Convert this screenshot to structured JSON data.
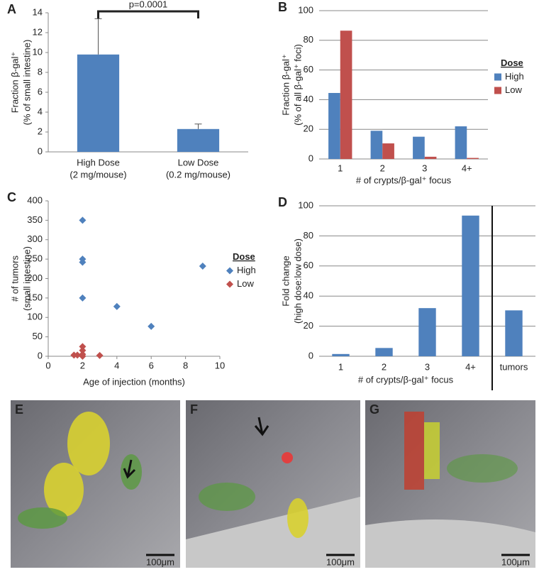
{
  "chart_data": [
    {
      "type": "bar",
      "panel": "A",
      "ylabel": [
        "Fraction β-gal⁺",
        "(% of small intestine)"
      ],
      "categories": [
        "High Dose",
        "Low Dose"
      ],
      "category_sublabels": [
        "(2 mg/mouse)",
        "(0.2 mg/mouse)"
      ],
      "values": [
        9.8,
        2.3
      ],
      "errors": [
        3.6,
        0.5
      ],
      "color": "#4f81bd",
      "ylim": [
        0,
        14
      ],
      "yticks": [
        0,
        2,
        4,
        6,
        8,
        10,
        12,
        14
      ],
      "annotation": "p=0.0001"
    },
    {
      "type": "grouped_bar",
      "panel": "B",
      "ylabel": [
        "Fraction β-gal⁺",
        "(% of all β-gal⁺ foci)"
      ],
      "xlabel": "# of crypts/β-gal⁺ focus",
      "categories": [
        "1",
        "2",
        "3",
        "4+"
      ],
      "series": [
        {
          "name": "High",
          "color": "#4f81bd",
          "values": [
            44.5,
            19,
            15,
            22
          ]
        },
        {
          "name": "Low",
          "color": "#c0504d",
          "values": [
            86.5,
            10.5,
            1.5,
            0.7
          ]
        }
      ],
      "ylim": [
        0,
        100
      ],
      "yticks": [
        0,
        20,
        40,
        60,
        80,
        100
      ],
      "grid": true,
      "legend_title": "Dose",
      "legend": "right"
    },
    {
      "type": "scatter",
      "panel": "C",
      "ylabel": [
        "# of tumors",
        "(small intestine)"
      ],
      "xlabel": "Age of injection (months)",
      "series": [
        {
          "name": "High",
          "color": "#4f81bd",
          "x": [
            2,
            2,
            2,
            2,
            4,
            6,
            9
          ],
          "values": [
            350,
            250,
            242,
            150,
            128,
            77,
            232
          ]
        },
        {
          "name": "Low",
          "color": "#c0504d",
          "x": [
            1.5,
            1.7,
            2,
            2,
            2,
            2,
            3
          ],
          "values": [
            3,
            3,
            25,
            15,
            5,
            0,
            2
          ]
        }
      ],
      "xlim": [
        0,
        10
      ],
      "xticks": [
        0,
        2,
        4,
        6,
        8,
        10
      ],
      "ylim": [
        0,
        400
      ],
      "yticks": [
        0,
        50,
        100,
        150,
        200,
        250,
        300,
        350,
        400
      ],
      "legend_title": "Dose",
      "legend": "right"
    },
    {
      "type": "bar",
      "panel": "D",
      "ylabel": [
        "Fold change",
        "(high dose:low dose)"
      ],
      "xlabel": "# of crypts/β-gal⁺ focus",
      "categories": [
        "1",
        "2",
        "3",
        "4+",
        "tumors"
      ],
      "values": [
        1.5,
        5.5,
        32,
        93.5,
        30.5
      ],
      "color": "#4f81bd",
      "ylim": [
        0,
        100
      ],
      "yticks": [
        0,
        20,
        40,
        60,
        80,
        100
      ],
      "grid": true
    }
  ],
  "images": [
    {
      "panel": "E",
      "scale_bar": "100μm"
    },
    {
      "panel": "F",
      "scale_bar": "100μm"
    },
    {
      "panel": "G",
      "scale_bar": "100μm"
    }
  ]
}
